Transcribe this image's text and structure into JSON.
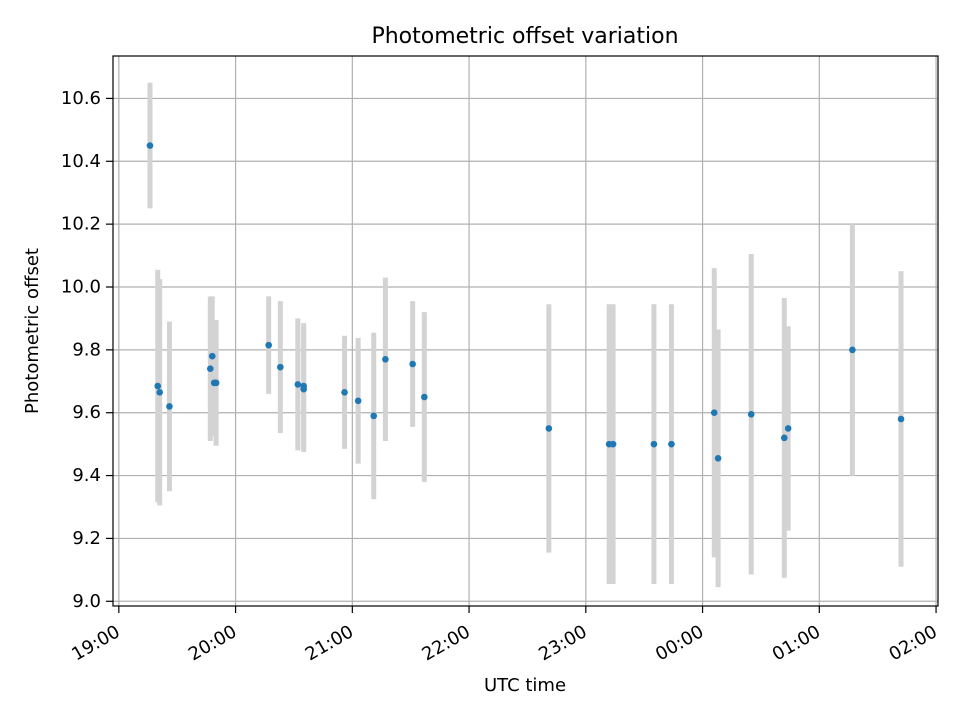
{
  "chart_data": {
    "type": "scatter",
    "title": "Photometric offset variation",
    "xlabel": "UTC time",
    "ylabel": "Photometric offset",
    "xlim": [
      "18:57",
      "02:01"
    ],
    "ylim": [
      8.985,
      10.735
    ],
    "grid": true,
    "x_ticks": [
      "19:00",
      "20:00",
      "21:00",
      "22:00",
      "23:00",
      "00:00",
      "01:00",
      "02:00"
    ],
    "y_ticks": [
      9.0,
      9.2,
      9.4,
      9.6,
      9.8,
      10.0,
      10.2,
      10.4,
      10.6
    ],
    "y_tick_labels": [
      "9.0",
      "9.2",
      "9.4",
      "9.6",
      "9.8",
      "10.0",
      "10.2",
      "10.4",
      "10.6"
    ],
    "colors": {
      "point": "#1f77b4",
      "errorbar": "#d3d3d3",
      "grid": "#b0b0b0"
    },
    "points": [
      {
        "x": "19:16",
        "y": 10.45,
        "err": 0.2
      },
      {
        "x": "19:20",
        "y": 9.685,
        "err": 0.37
      },
      {
        "x": "19:21",
        "y": 9.665,
        "err": 0.36
      },
      {
        "x": "19:26",
        "y": 9.62,
        "err": 0.27
      },
      {
        "x": "19:47",
        "y": 9.74,
        "err": 0.23
      },
      {
        "x": "19:48",
        "y": 9.78,
        "err": 0.19
      },
      {
        "x": "19:49",
        "y": 9.695,
        "err": 0.17
      },
      {
        "x": "19:50",
        "y": 9.695,
        "err": 0.2
      },
      {
        "x": "20:17",
        "y": 9.815,
        "err": 0.155
      },
      {
        "x": "20:23",
        "y": 9.745,
        "err": 0.21
      },
      {
        "x": "20:32",
        "y": 9.69,
        "err": 0.21
      },
      {
        "x": "20:35",
        "y": 9.685,
        "err": 0.2
      },
      {
        "x": "20:35",
        "y": 9.675,
        "err": 0.2
      },
      {
        "x": "20:56",
        "y": 9.665,
        "err": 0.18
      },
      {
        "x": "21:03",
        "y": 9.638,
        "err": 0.2
      },
      {
        "x": "21:11",
        "y": 9.59,
        "err": 0.265
      },
      {
        "x": "21:17",
        "y": 9.77,
        "err": 0.26
      },
      {
        "x": "21:31",
        "y": 9.755,
        "err": 0.2
      },
      {
        "x": "21:37",
        "y": 9.65,
        "err": 0.27
      },
      {
        "x": "22:41",
        "y": 9.55,
        "err": 0.395
      },
      {
        "x": "23:12",
        "y": 9.5,
        "err": 0.445
      },
      {
        "x": "23:14",
        "y": 9.5,
        "err": 0.445
      },
      {
        "x": "23:35",
        "y": 9.5,
        "err": 0.445
      },
      {
        "x": "23:44",
        "y": 9.5,
        "err": 0.445
      },
      {
        "x": "00:06",
        "y": 9.6,
        "err": 0.46
      },
      {
        "x": "00:08",
        "y": 9.455,
        "err": 0.41
      },
      {
        "x": "00:25",
        "y": 9.595,
        "err": 0.51
      },
      {
        "x": "00:42",
        "y": 9.52,
        "err": 0.445
      },
      {
        "x": "00:44",
        "y": 9.55,
        "err": 0.325
      },
      {
        "x": "01:17",
        "y": 9.8,
        "err": 0.4
      },
      {
        "x": "01:42",
        "y": 9.58,
        "err": 0.47
      }
    ]
  }
}
